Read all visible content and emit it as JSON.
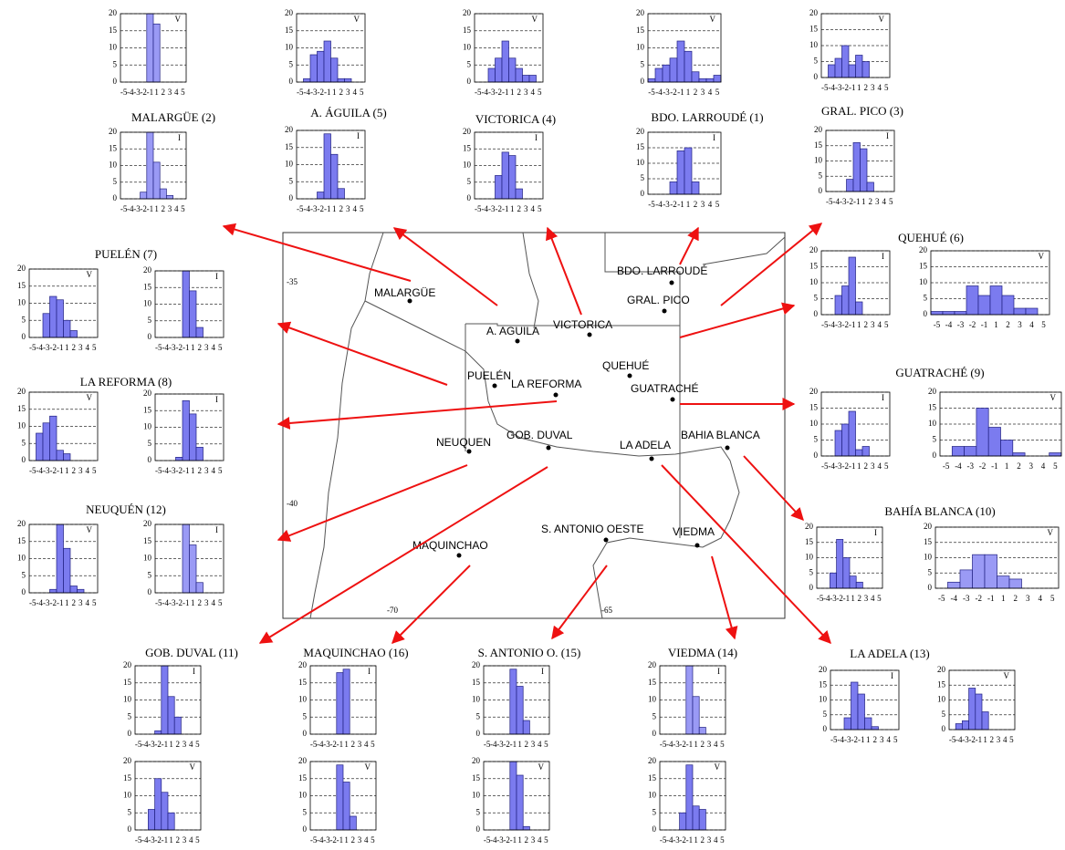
{
  "chart_data": [
    {
      "type": "bar",
      "label": "V",
      "categories": [
        "-5",
        "-4",
        "-3",
        "-2",
        "-1",
        "1",
        "2",
        "3",
        "4",
        "5"
      ],
      "values": [
        0,
        0,
        0,
        0,
        20,
        17,
        0,
        0,
        0,
        0
      ],
      "ylim": [
        0,
        20
      ],
      "yticks": [
        0,
        5,
        10,
        15,
        20
      ],
      "grid": true,
      "color": "#9a9af5"
    },
    {
      "type": "bar",
      "title": "MALARGÜE (2)",
      "label": "I",
      "categories": [
        "-5",
        "-4",
        "-3",
        "-2",
        "-1",
        "1",
        "2",
        "3",
        "4",
        "5"
      ],
      "values": [
        0,
        0,
        0,
        2,
        20,
        11,
        3,
        1,
        0,
        0
      ],
      "ylim": [
        0,
        20
      ],
      "yticks": [
        0,
        5,
        10,
        15,
        20
      ],
      "grid": true,
      "color": "#9a9af5"
    },
    {
      "type": "bar",
      "label": "V",
      "categories": [
        "-5",
        "-4",
        "-3",
        "-2",
        "-1",
        "1",
        "2",
        "3",
        "4",
        "5"
      ],
      "values": [
        0,
        1,
        8,
        9,
        12,
        7,
        1,
        1,
        0,
        0
      ],
      "ylim": [
        0,
        20
      ],
      "yticks": [
        0,
        5,
        10,
        15,
        20
      ],
      "grid": true,
      "color": "#7b7bef"
    },
    {
      "type": "bar",
      "title": "A. ÁGUILA (5)",
      "label": "I",
      "categories": [
        "-5",
        "-4",
        "-3",
        "-2",
        "-1",
        "1",
        "2",
        "3",
        "4",
        "5"
      ],
      "values": [
        0,
        0,
        0,
        2,
        19,
        13,
        3,
        0,
        0,
        0
      ],
      "ylim": [
        0,
        20
      ],
      "yticks": [
        0,
        5,
        10,
        15,
        20
      ],
      "grid": true,
      "color": "#7b7bef"
    },
    {
      "type": "bar",
      "label": "V",
      "categories": [
        "-5",
        "-4",
        "-3",
        "-2",
        "-1",
        "1",
        "2",
        "3",
        "4",
        "5"
      ],
      "values": [
        0,
        0,
        4,
        7,
        12,
        7,
        4,
        2,
        2,
        0
      ],
      "ylim": [
        0,
        20
      ],
      "yticks": [
        0,
        5,
        10,
        15,
        20
      ],
      "grid": true,
      "color": "#7b7bef"
    },
    {
      "type": "bar",
      "title": "VICTORICA (4)",
      "label": "I",
      "categories": [
        "-5",
        "-4",
        "-3",
        "-2",
        "-1",
        "1",
        "2",
        "3",
        "4",
        "5"
      ],
      "values": [
        0,
        0,
        0,
        7,
        14,
        13,
        3,
        0,
        0,
        0
      ],
      "ylim": [
        0,
        20
      ],
      "yticks": [
        0,
        5,
        10,
        15,
        20
      ],
      "grid": true,
      "color": "#7b7bef"
    },
    {
      "type": "bar",
      "label": "V",
      "categories": [
        "-5",
        "-4",
        "-3",
        "-2",
        "-1",
        "1",
        "2",
        "3",
        "4",
        "5"
      ],
      "values": [
        1,
        4,
        5,
        7,
        12,
        9,
        3,
        1,
        1,
        2
      ],
      "ylim": [
        0,
        20
      ],
      "yticks": [
        0,
        5,
        10,
        15,
        20
      ],
      "grid": true,
      "color": "#7b7bef"
    },
    {
      "type": "bar",
      "title": "BDO. LARROUDÉ (1)",
      "label": "I",
      "categories": [
        "-5",
        "-4",
        "-3",
        "-2",
        "-1",
        "1",
        "2",
        "3",
        "4",
        "5"
      ],
      "values": [
        0,
        0,
        0,
        4,
        14,
        15,
        4,
        0,
        0,
        0
      ],
      "ylim": [
        0,
        20
      ],
      "yticks": [
        0,
        5,
        10,
        15,
        20
      ],
      "grid": true,
      "color": "#7b7bef"
    },
    {
      "type": "bar",
      "label": "V",
      "categories": [
        "-5",
        "-4",
        "-3",
        "-2",
        "-1",
        "1",
        "2",
        "3",
        "4",
        "5"
      ],
      "values": [
        0,
        4,
        6,
        10,
        4,
        7,
        5,
        0,
        0,
        0
      ],
      "ylim": [
        0,
        20
      ],
      "yticks": [
        0,
        5,
        10,
        15,
        20
      ],
      "grid": true,
      "color": "#7b7bef"
    },
    {
      "type": "bar",
      "title": "GRAL. PICO (3)",
      "label": "I",
      "categories": [
        "-5",
        "-4",
        "-3",
        "-2",
        "-1",
        "1",
        "2",
        "3",
        "4",
        "5"
      ],
      "values": [
        0,
        0,
        0,
        4,
        16,
        14,
        3,
        0,
        0,
        0
      ],
      "ylim": [
        0,
        20
      ],
      "yticks": [
        0,
        5,
        10,
        15,
        20
      ],
      "grid": true,
      "color": "#7b7bef"
    },
    {
      "type": "bar",
      "title": "QUEHUÉ (6)",
      "label": "I",
      "categories": [
        "-5",
        "-4",
        "-3",
        "-2",
        "-1",
        "1",
        "2",
        "3",
        "4",
        "5"
      ],
      "values": [
        0,
        0,
        6,
        9,
        18,
        4,
        0,
        0,
        0,
        0
      ],
      "ylim": [
        0,
        20
      ],
      "yticks": [
        0,
        5,
        10,
        15,
        20
      ],
      "grid": true,
      "color": "#7b7bef"
    },
    {
      "type": "bar",
      "label": "V",
      "categories": [
        "-5",
        "-4",
        "-3",
        "-2",
        "-1",
        "1",
        "2",
        "3",
        "4",
        "5"
      ],
      "values": [
        1,
        1,
        1,
        9,
        6,
        9,
        6,
        2,
        2,
        0
      ],
      "ylim": [
        0,
        20
      ],
      "yticks": [
        0,
        5,
        10,
        15,
        20
      ],
      "grid": true,
      "color": "#7b7bef"
    },
    {
      "type": "bar",
      "title": "PUELÉN (7)",
      "label": "V",
      "categories": [
        "-5",
        "-4",
        "-3",
        "-2",
        "-1",
        "1",
        "2",
        "3",
        "4",
        "5"
      ],
      "values": [
        0,
        0,
        7,
        12,
        11,
        5,
        2,
        0,
        0,
        0
      ],
      "ylim": [
        0,
        20
      ],
      "yticks": [
        0,
        5,
        10,
        15,
        20
      ],
      "grid": true,
      "color": "#7b7bef"
    },
    {
      "type": "bar",
      "label": "I",
      "categories": [
        "-5",
        "-4",
        "-3",
        "-2",
        "-1",
        "1",
        "2",
        "3",
        "4",
        "5"
      ],
      "values": [
        0,
        0,
        0,
        0,
        20,
        14,
        3,
        0,
        0,
        0
      ],
      "ylim": [
        0,
        20
      ],
      "yticks": [
        0,
        5,
        10,
        15,
        20
      ],
      "grid": true,
      "color": "#7b7bef"
    },
    {
      "type": "bar",
      "title": "LA REFORMA (8)",
      "label": "V",
      "categories": [
        "-5",
        "-4",
        "-3",
        "-2",
        "-1",
        "1",
        "2",
        "3",
        "4",
        "5"
      ],
      "values": [
        0,
        8,
        11,
        13,
        3,
        2,
        0,
        0,
        0,
        0
      ],
      "ylim": [
        0,
        20
      ],
      "yticks": [
        0,
        5,
        10,
        15,
        20
      ],
      "grid": true,
      "color": "#7b7bef"
    },
    {
      "type": "bar",
      "label": "I",
      "categories": [
        "-5",
        "-4",
        "-3",
        "-2",
        "-1",
        "1",
        "2",
        "3",
        "4",
        "5"
      ],
      "values": [
        0,
        0,
        0,
        1,
        18,
        14,
        4,
        0,
        0,
        0
      ],
      "ylim": [
        0,
        20
      ],
      "yticks": [
        0,
        5,
        10,
        15,
        20
      ],
      "grid": true,
      "color": "#7b7bef"
    },
    {
      "type": "bar",
      "title": "NEUQUÉN (12)",
      "label": "V",
      "categories": [
        "-5",
        "-4",
        "-3",
        "-2",
        "-1",
        "1",
        "2",
        "3",
        "4",
        "5"
      ],
      "values": [
        0,
        0,
        0,
        1,
        20,
        13,
        2,
        1,
        0,
        0
      ],
      "ylim": [
        0,
        20
      ],
      "yticks": [
        0,
        5,
        10,
        15,
        20
      ],
      "grid": true,
      "color": "#7b7bef"
    },
    {
      "type": "bar",
      "label": "I",
      "categories": [
        "-5",
        "-4",
        "-3",
        "-2",
        "-1",
        "1",
        "2",
        "3",
        "4",
        "5"
      ],
      "values": [
        0,
        0,
        0,
        0,
        20,
        14,
        3,
        0,
        0,
        0
      ],
      "ylim": [
        0,
        20
      ],
      "yticks": [
        0,
        5,
        10,
        15,
        20
      ],
      "grid": true,
      "color": "#9a9af5"
    },
    {
      "type": "bar",
      "title": "GUATRACHÉ (9)",
      "label": "I",
      "categories": [
        "-5",
        "-4",
        "-3",
        "-2",
        "-1",
        "1",
        "2",
        "3",
        "4",
        "5"
      ],
      "values": [
        0,
        0,
        8,
        10,
        14,
        2,
        3,
        0,
        0,
        0
      ],
      "ylim": [
        0,
        20
      ],
      "yticks": [
        0,
        5,
        10,
        15,
        20
      ],
      "grid": true,
      "color": "#7b7bef"
    },
    {
      "type": "bar",
      "label": "V",
      "categories": [
        "-5",
        "-4",
        "-3",
        "-2",
        "-1",
        "1",
        "2",
        "3",
        "4",
        "5"
      ],
      "values": [
        0,
        3,
        3,
        15,
        9,
        5,
        1,
        0,
        0,
        1
      ],
      "ylim": [
        0,
        20
      ],
      "yticks": [
        0,
        5,
        10,
        15,
        20
      ],
      "grid": true,
      "color": "#7b7bef"
    },
    {
      "type": "bar",
      "title": "BAHÍA BLANCA (10)",
      "label": "I",
      "categories": [
        "-5",
        "-4",
        "-3",
        "-2",
        "-1",
        "1",
        "2",
        "3",
        "4",
        "5"
      ],
      "values": [
        0,
        0,
        5,
        16,
        10,
        4,
        2,
        0,
        0,
        0
      ],
      "ylim": [
        0,
        20
      ],
      "yticks": [
        0,
        5,
        10,
        15,
        20
      ],
      "grid": true,
      "color": "#7b7bef"
    },
    {
      "type": "bar",
      "label": "V",
      "categories": [
        "-5",
        "-4",
        "-3",
        "-2",
        "-1",
        "1",
        "2",
        "3",
        "4",
        "5"
      ],
      "values": [
        0,
        2,
        6,
        11,
        11,
        4,
        3,
        0,
        0,
        0
      ],
      "ylim": [
        0,
        20
      ],
      "yticks": [
        0,
        5,
        10,
        15,
        20
      ],
      "grid": true,
      "color": "#9a9af5"
    },
    {
      "type": "bar",
      "title": "LA ADELA (13)",
      "label": "I",
      "categories": [
        "-5",
        "-4",
        "-3",
        "-2",
        "-1",
        "1",
        "2",
        "3",
        "4",
        "5"
      ],
      "values": [
        0,
        0,
        4,
        16,
        12,
        4,
        1,
        0,
        0,
        0
      ],
      "ylim": [
        0,
        20
      ],
      "yticks": [
        0,
        5,
        10,
        15,
        20
      ],
      "grid": true,
      "color": "#7b7bef"
    },
    {
      "type": "bar",
      "label": "V",
      "categories": [
        "-5",
        "-4",
        "-3",
        "-2",
        "-1",
        "1",
        "2",
        "3",
        "4",
        "5"
      ],
      "values": [
        0,
        2,
        3,
        14,
        12,
        6,
        0,
        0,
        0,
        0
      ],
      "ylim": [
        0,
        20
      ],
      "yticks": [
        0,
        5,
        10,
        15,
        20
      ],
      "grid": true,
      "color": "#7b7bef"
    },
    {
      "type": "bar",
      "title": "GOB. DUVAL (11)",
      "label": "I",
      "categories": [
        "-5",
        "-4",
        "-3",
        "-2",
        "-1",
        "1",
        "2",
        "3",
        "4",
        "5"
      ],
      "values": [
        0,
        0,
        0,
        1,
        20,
        11,
        5,
        0,
        0,
        0
      ],
      "ylim": [
        0,
        20
      ],
      "yticks": [
        0,
        5,
        10,
        15,
        20
      ],
      "grid": true,
      "color": "#7b7bef"
    },
    {
      "type": "bar",
      "label": "V",
      "categories": [
        "-5",
        "-4",
        "-3",
        "-2",
        "-1",
        "1",
        "2",
        "3",
        "4",
        "5"
      ],
      "values": [
        0,
        0,
        6,
        15,
        11,
        5,
        0,
        0,
        0,
        0
      ],
      "ylim": [
        0,
        20
      ],
      "yticks": [
        0,
        5,
        10,
        15,
        20
      ],
      "grid": true,
      "color": "#7b7bef"
    },
    {
      "type": "bar",
      "title": "MAQUINCHAO (16)",
      "label": "I",
      "categories": [
        "-5",
        "-4",
        "-3",
        "-2",
        "-1",
        "1",
        "2",
        "3",
        "4",
        "5"
      ],
      "values": [
        0,
        0,
        0,
        0,
        18,
        19,
        0,
        0,
        0,
        0
      ],
      "ylim": [
        0,
        20
      ],
      "yticks": [
        0,
        5,
        10,
        15,
        20
      ],
      "grid": true,
      "color": "#7b7bef"
    },
    {
      "type": "bar",
      "label": "V",
      "categories": [
        "-5",
        "-4",
        "-3",
        "-2",
        "-1",
        "1",
        "2",
        "3",
        "4",
        "5"
      ],
      "values": [
        0,
        0,
        0,
        0,
        19,
        14,
        4,
        0,
        0,
        0
      ],
      "ylim": [
        0,
        20
      ],
      "yticks": [
        0,
        5,
        10,
        15,
        20
      ],
      "grid": true,
      "color": "#7b7bef"
    },
    {
      "type": "bar",
      "title": "S. ANTONIO O. (15)",
      "label": "I",
      "categories": [
        "-5",
        "-4",
        "-3",
        "-2",
        "-1",
        "1",
        "2",
        "3",
        "4",
        "5"
      ],
      "values": [
        0,
        0,
        0,
        0,
        19,
        14,
        4,
        0,
        0,
        0
      ],
      "ylim": [
        0,
        20
      ],
      "yticks": [
        0,
        5,
        10,
        15,
        20
      ],
      "grid": true,
      "color": "#7b7bef"
    },
    {
      "type": "bar",
      "label": "V",
      "categories": [
        "-5",
        "-4",
        "-3",
        "-2",
        "-1",
        "1",
        "2",
        "3",
        "4",
        "5"
      ],
      "values": [
        0,
        0,
        0,
        0,
        20,
        16,
        1,
        0,
        0,
        0
      ],
      "ylim": [
        0,
        20
      ],
      "yticks": [
        0,
        5,
        10,
        15,
        20
      ],
      "grid": true,
      "color": "#7b7bef"
    },
    {
      "type": "bar",
      "title": "VIEDMA (14)",
      "label": "I",
      "categories": [
        "-5",
        "-4",
        "-3",
        "-2",
        "-1",
        "1",
        "2",
        "3",
        "4",
        "5"
      ],
      "values": [
        0,
        0,
        0,
        0,
        20,
        11,
        2,
        0,
        0,
        0
      ],
      "ylim": [
        0,
        20
      ],
      "yticks": [
        0,
        5,
        10,
        15,
        20
      ],
      "grid": true,
      "color": "#9a9af5"
    },
    {
      "type": "bar",
      "label": "V",
      "categories": [
        "-5",
        "-4",
        "-3",
        "-2",
        "-1",
        "1",
        "2",
        "3",
        "4",
        "5"
      ],
      "values": [
        0,
        0,
        0,
        5,
        19,
        7,
        6,
        0,
        0,
        0
      ],
      "ylim": [
        0,
        20
      ],
      "yticks": [
        0,
        5,
        10,
        15,
        20
      ],
      "grid": true,
      "color": "#7b7bef"
    }
  ],
  "map": {
    "places": [
      "MALARGÜE",
      "A. AGUILA",
      "VICTORICA",
      "BDO. LARROUDÉ",
      "GRAL. PICO",
      "QUEHUÉ",
      "PUELÉN",
      "LA REFORMA",
      "GUATRACHÉ",
      "NEUQUEN",
      "GOB. DUVAL",
      "LA ADELA",
      "BAHIA BLANCA",
      "S. ANTONIO OESTE",
      "VIEDMA",
      "MAQUINCHAO"
    ],
    "lat_labels": [
      -35,
      -40
    ],
    "lon_labels": [
      -70,
      -65
    ]
  }
}
